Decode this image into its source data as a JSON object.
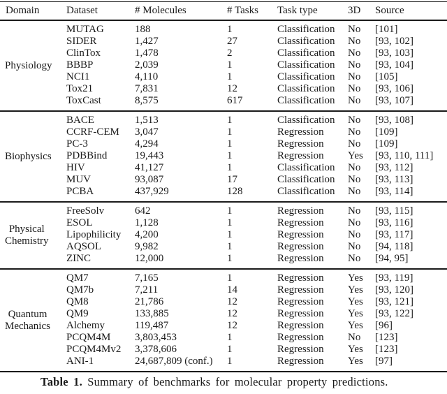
{
  "table": {
    "columns": [
      "Domain",
      "Dataset",
      "# Molecules",
      "# Tasks",
      "Task type",
      "3D",
      "Source"
    ],
    "groups": [
      {
        "domain": "Physiology",
        "domain_lines": [
          "Physiology"
        ],
        "rows": [
          {
            "dataset": "MUTAG",
            "molecules": "188",
            "tasks": "1",
            "task_type": "Classification",
            "three_d": "No",
            "source": "[101]"
          },
          {
            "dataset": "SIDER",
            "molecules": "1,427",
            "tasks": "27",
            "task_type": "Classification",
            "three_d": "No",
            "source": "[93, 102]"
          },
          {
            "dataset": "ClinTox",
            "molecules": "1,478",
            "tasks": "2",
            "task_type": "Classification",
            "three_d": "No",
            "source": "[93, 103]"
          },
          {
            "dataset": "BBBP",
            "molecules": "2,039",
            "tasks": "1",
            "task_type": "Classification",
            "three_d": "No",
            "source": "[93, 104]"
          },
          {
            "dataset": "NCI1",
            "molecules": "4,110",
            "tasks": "1",
            "task_type": "Classification",
            "three_d": "No",
            "source": "[105]"
          },
          {
            "dataset": "Tox21",
            "molecules": "7,831",
            "tasks": "12",
            "task_type": "Classification",
            "three_d": "No",
            "source": "[93, 106]"
          },
          {
            "dataset": "ToxCast",
            "molecules": "8,575",
            "tasks": "617",
            "task_type": "Classification",
            "three_d": "No",
            "source": "[93, 107]"
          }
        ]
      },
      {
        "domain": "Biophysics",
        "domain_lines": [
          "Biophysics"
        ],
        "rows": [
          {
            "dataset": "BACE",
            "molecules": "1,513",
            "tasks": "1",
            "task_type": "Classification",
            "three_d": "No",
            "source": "[93, 108]"
          },
          {
            "dataset": "CCRF-CEM",
            "molecules": "3,047",
            "tasks": "1",
            "task_type": "Regression",
            "three_d": "No",
            "source": "[109]"
          },
          {
            "dataset": "PC-3",
            "molecules": "4,294",
            "tasks": "1",
            "task_type": "Regression",
            "three_d": "No",
            "source": "[109]"
          },
          {
            "dataset": "PDBBind",
            "molecules": "19,443",
            "tasks": "1",
            "task_type": "Regression",
            "three_d": "Yes",
            "source": "[93, 110, 111]"
          },
          {
            "dataset": "HIV",
            "molecules": "41,127",
            "tasks": "1",
            "task_type": "Classification",
            "three_d": "No",
            "source": "[93, 112]"
          },
          {
            "dataset": "MUV",
            "molecules": "93,087",
            "tasks": "17",
            "task_type": "Classification",
            "three_d": "No",
            "source": "[93, 113]"
          },
          {
            "dataset": "PCBA",
            "molecules": "437,929",
            "tasks": "128",
            "task_type": "Classification",
            "three_d": "No",
            "source": "[93, 114]"
          }
        ]
      },
      {
        "domain": "Physical Chemistry",
        "domain_lines": [
          "Physical",
          "Chemistry"
        ],
        "rows": [
          {
            "dataset": "FreeSolv",
            "molecules": "642",
            "tasks": "1",
            "task_type": "Regression",
            "three_d": "No",
            "source": "[93, 115]"
          },
          {
            "dataset": "ESOL",
            "molecules": "1,128",
            "tasks": "1",
            "task_type": "Regression",
            "three_d": "No",
            "source": "[93, 116]"
          },
          {
            "dataset": "Lipophilicity",
            "molecules": "4,200",
            "tasks": "1",
            "task_type": "Regression",
            "three_d": "No",
            "source": "[93, 117]"
          },
          {
            "dataset": "AQSOL",
            "molecules": "9,982",
            "tasks": "1",
            "task_type": "Regression",
            "three_d": "No",
            "source": "[94, 118]"
          },
          {
            "dataset": "ZINC",
            "molecules": "12,000",
            "tasks": "1",
            "task_type": "Regression",
            "three_d": "No",
            "source": "[94, 95]"
          }
        ]
      },
      {
        "domain": "Quantum Mechanics",
        "domain_lines": [
          "Quantum",
          "Mechanics"
        ],
        "rows": [
          {
            "dataset": "QM7",
            "molecules": "7,165",
            "tasks": "1",
            "task_type": "Regression",
            "three_d": "Yes",
            "source": "[93, 119]"
          },
          {
            "dataset": "QM7b",
            "molecules": "7,211",
            "tasks": "14",
            "task_type": "Regression",
            "three_d": "Yes",
            "source": "[93, 120]"
          },
          {
            "dataset": "QM8",
            "molecules": "21,786",
            "tasks": "12",
            "task_type": "Regression",
            "three_d": "Yes",
            "source": "[93, 121]"
          },
          {
            "dataset": "QM9",
            "molecules": "133,885",
            "tasks": "12",
            "task_type": "Regression",
            "three_d": "Yes",
            "source": "[93, 122]"
          },
          {
            "dataset": "Alchemy",
            "molecules": "119,487",
            "tasks": "12",
            "task_type": "Regression",
            "three_d": "Yes",
            "source": "[96]"
          },
          {
            "dataset": "PCQM4M",
            "molecules": "3,803,453",
            "tasks": "1",
            "task_type": "Regression",
            "three_d": "No",
            "source": "[123]"
          },
          {
            "dataset": "PCQM4Mv2",
            "molecules": "3,378,606",
            "tasks": "1",
            "task_type": "Regression",
            "three_d": "Yes",
            "source": "[123]"
          },
          {
            "dataset": "ANI-1",
            "molecules": "24,687,809 (conf.)",
            "tasks": "1",
            "task_type": "Regression",
            "three_d": "Yes",
            "source": "[97]"
          }
        ]
      }
    ]
  },
  "caption": {
    "label": "Table 1.",
    "text": "Summary of benchmarks for molecular property predictions."
  }
}
